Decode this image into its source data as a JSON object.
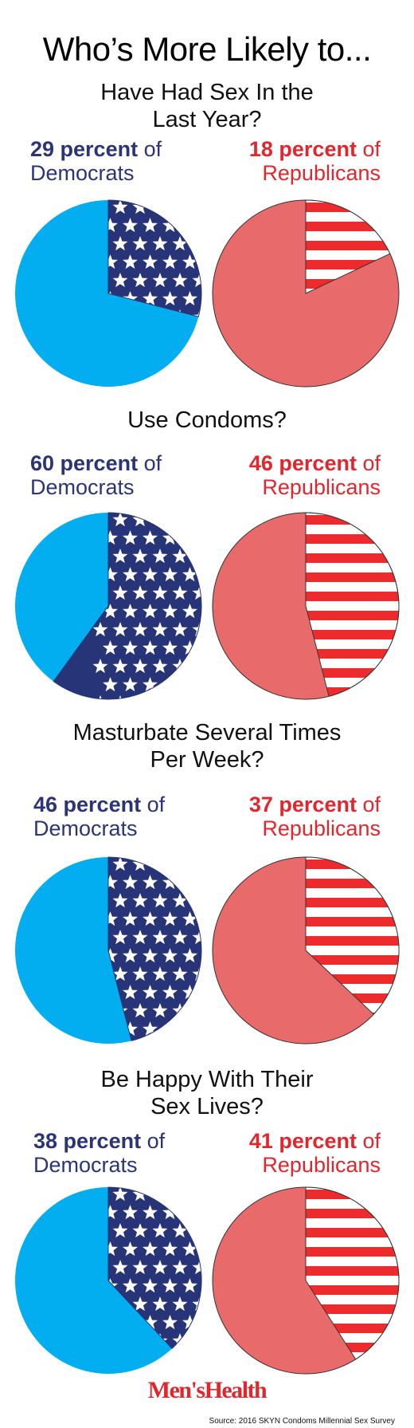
{
  "title": "Who’s More Likely to...",
  "colors": {
    "democrat_text": "#2b3478",
    "republican_text": "#e3262c",
    "democrat_pie": "#02aef0",
    "democrat_wedge": "#283478",
    "republican_pie": "#e96a6a",
    "republican_stripe": "#ee2b2c"
  },
  "questions": [
    {
      "title_lines": [
        "Have Had Sex In the",
        "Last Year?"
      ],
      "democrats": {
        "value": "29 percent",
        "of": "of",
        "party": "Democrats"
      },
      "republicans": {
        "value": "18 percent",
        "of": "of",
        "party": "Republicans"
      }
    },
    {
      "title_lines": [
        "Use Condoms?"
      ],
      "democrats": {
        "value": "60 percent",
        "of": "of",
        "party": "Democrats"
      },
      "republicans": {
        "value": "46 percent",
        "of": "of",
        "party": "Republicans"
      }
    },
    {
      "title_lines": [
        "Masturbate Several Times",
        "Per Week?"
      ],
      "democrats": {
        "value": "46 percent",
        "of": "of",
        "party": "Democrats"
      },
      "republicans": {
        "value": "37 percent",
        "of": "of",
        "party": "Republicans"
      }
    },
    {
      "title_lines": [
        "Be Happy With Their",
        "Sex Lives?"
      ],
      "democrats": {
        "value": "38 percent",
        "of": "of",
        "party": "Democrats"
      },
      "republicans": {
        "value": "41 percent",
        "of": "of",
        "party": "Republicans"
      }
    }
  ],
  "chart_data": [
    {
      "type": "pie",
      "title": "Have Had Sex In the Last Year?",
      "series": [
        {
          "name": "Democrats",
          "values": [
            29,
            71
          ]
        },
        {
          "name": "Republicans",
          "values": [
            18,
            82
          ]
        }
      ]
    },
    {
      "type": "pie",
      "title": "Use Condoms?",
      "series": [
        {
          "name": "Democrats",
          "values": [
            60,
            40
          ]
        },
        {
          "name": "Republicans",
          "values": [
            46,
            54
          ]
        }
      ]
    },
    {
      "type": "pie",
      "title": "Masturbate Several Times Per Week?",
      "series": [
        {
          "name": "Democrats",
          "values": [
            46,
            54
          ]
        },
        {
          "name": "Republicans",
          "values": [
            37,
            63
          ]
        }
      ]
    },
    {
      "type": "pie",
      "title": "Be Happy With Their Sex Lives?",
      "series": [
        {
          "name": "Democrats",
          "values": [
            38,
            62
          ]
        },
        {
          "name": "Republicans",
          "values": [
            41,
            59
          ]
        }
      ]
    }
  ],
  "logo": "Men'sHealth",
  "source": "Source: 2016 SKYN Condoms Millennial Sex Survey"
}
